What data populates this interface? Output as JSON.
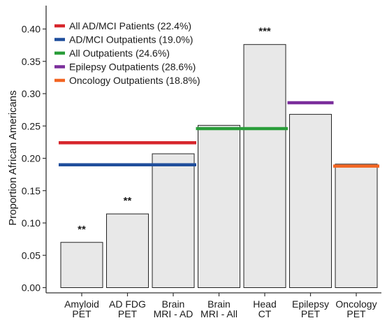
{
  "chart_data": {
    "type": "bar",
    "ylabel": "Proportion African Americans",
    "xlabel": "",
    "ylim": [
      0,
      0.42
    ],
    "yticks": [
      "0.00",
      "0.05",
      "0.10",
      "0.15",
      "0.20",
      "0.25",
      "0.30",
      "0.35",
      "0.40"
    ],
    "categories": [
      [
        "Amyloid",
        "PET"
      ],
      [
        "AD FDG",
        "PET"
      ],
      [
        "Brain",
        "MRI - AD"
      ],
      [
        "Brain",
        "MRI - All"
      ],
      [
        "Head",
        "CT"
      ],
      [
        "Epilepsy",
        "PET"
      ],
      [
        "Oncology",
        "PET"
      ]
    ],
    "values": [
      0.07,
      0.114,
      0.207,
      0.251,
      0.376,
      0.268,
      0.191
    ],
    "significance": [
      "**",
      "**",
      "",
      "",
      "***",
      "",
      ""
    ],
    "bar_color": "#e8e8e8",
    "reference_lines": [
      {
        "name": "All AD/MCI Patients (22.4%)",
        "value": 0.224,
        "color": "#d7262c",
        "span": [
          0,
          2
        ]
      },
      {
        "name": "AD/MCI Outpatients (19.0%)",
        "value": 0.19,
        "color": "#1f4e9c",
        "span": [
          0,
          2
        ]
      },
      {
        "name": "All Outpatients (24.6%)",
        "value": 0.246,
        "color": "#2a9d3a",
        "span": [
          3,
          4
        ]
      },
      {
        "name": "Epilepsy Outpatients (28.6%)",
        "value": 0.286,
        "color": "#7b2e9b",
        "span": [
          5,
          5
        ]
      },
      {
        "name": "Oncology Outpatients (18.8%)",
        "value": 0.188,
        "color": "#f26522",
        "span": [
          6,
          6
        ]
      }
    ],
    "legend_position": "top-left",
    "grid": false
  }
}
